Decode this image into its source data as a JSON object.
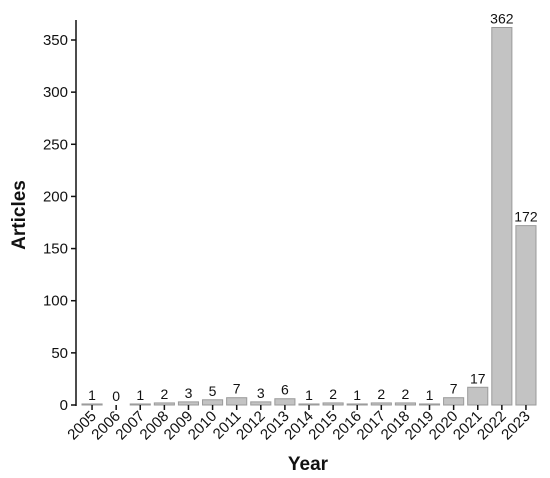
{
  "chart_data": {
    "type": "bar",
    "categories": [
      "2005",
      "2006",
      "2007",
      "2008",
      "2009",
      "2010",
      "2011",
      "2012",
      "2013",
      "2014",
      "2015",
      "2016",
      "2017",
      "2018",
      "2019",
      "2020",
      "2021",
      "2022",
      "2023"
    ],
    "values": [
      1,
      0,
      1,
      2,
      3,
      5,
      7,
      3,
      6,
      1,
      2,
      1,
      2,
      2,
      1,
      7,
      17,
      362,
      172
    ],
    "xlabel": "Year",
    "ylabel": "Articles",
    "ylim": [
      0,
      370
    ],
    "yticks": [
      0,
      50,
      100,
      150,
      200,
      250,
      300,
      350
    ],
    "grid": false,
    "data_labels": true,
    "colors": {
      "bar_fill": "#c3c3c3",
      "bar_stroke": "#9a9a9a",
      "axis": "#111111"
    }
  }
}
